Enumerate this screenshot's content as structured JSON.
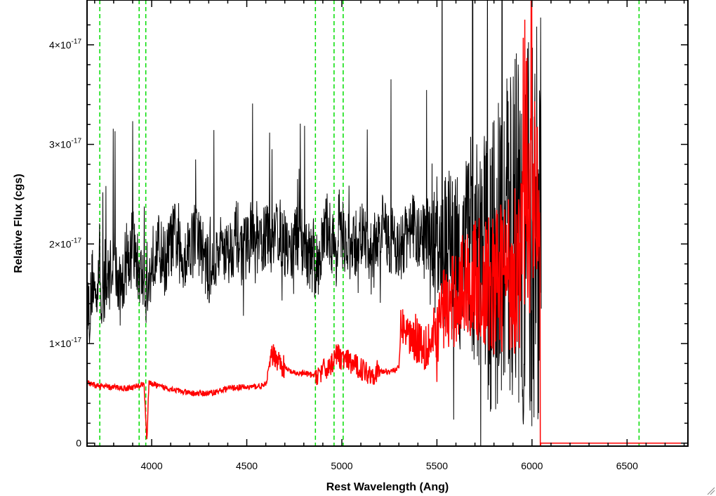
{
  "chart_data": {
    "type": "line",
    "xlabel": "Rest Wavelength (Ang)",
    "ylabel": "Relative Flux (cgs)",
    "xlim": [
      3660,
      6820
    ],
    "ylim": [
      -0.03,
      4.45
    ],
    "y_exponent": "-17",
    "x_ticks": [
      4000,
      4500,
      5000,
      5500,
      6000,
      6500
    ],
    "y_ticks": [
      {
        "value": 0,
        "label": "0"
      },
      {
        "value": 1,
        "label": "1×10",
        "exp": "-17"
      },
      {
        "value": 2,
        "label": "2×10",
        "exp": "-17"
      },
      {
        "value": 3,
        "label": "3×10",
        "exp": "-17"
      },
      {
        "value": 4,
        "label": "4×10",
        "exp": "-17"
      }
    ],
    "reference_lines": [
      3727,
      3934,
      3969,
      4861,
      4959,
      5007,
      6563
    ],
    "grid": false,
    "legend": "none",
    "colors": {
      "observed": "#000000",
      "model": "#ff0000",
      "reference": "#00dd00"
    },
    "series": [
      {
        "color": "#000000",
        "x": [
          3660,
          3675,
          3690,
          3705,
          3720,
          3728,
          3735,
          3750,
          3765,
          3780,
          3800,
          3820,
          3840,
          3860,
          3880,
          3900,
          3920,
          3940,
          3960,
          3980,
          4000,
          4025,
          4050,
          4075,
          4100,
          4125,
          4150,
          4175,
          4200,
          4225,
          4250,
          4275,
          4300,
          4325,
          4350,
          4375,
          4400,
          4425,
          4450,
          4475,
          4500,
          4525,
          4550,
          4575,
          4600,
          4625,
          4650,
          4675,
          4700,
          4725,
          4750,
          4775,
          4800,
          4825,
          4850,
          4860,
          4870,
          4900,
          4925,
          4950,
          4975,
          5000,
          5025,
          5050,
          5075,
          5100,
          5125,
          5150,
          5175,
          5200,
          5225,
          5250,
          5275,
          5300,
          5325,
          5350,
          5375,
          5400,
          5425,
          5450,
          5475,
          5500,
          5525,
          5550,
          5575,
          5600,
          5625,
          5650,
          5675,
          5700,
          5725,
          5750,
          5775,
          5800,
          5825,
          5850,
          5875,
          5900,
          5925,
          5950,
          5975,
          6000,
          6020,
          6035,
          6045,
          6050
        ],
        "y": [
          1.5,
          1.3,
          1.7,
          1.4,
          1.8,
          1.9,
          1.2,
          1.5,
          1.6,
          1.7,
          1.9,
          1.6,
          1.5,
          1.8,
          1.9,
          2.0,
          1.8,
          1.7,
          1.6,
          1.5,
          1.8,
          2.0,
          1.9,
          1.8,
          2.0,
          2.1,
          1.8,
          1.9,
          2.0,
          2.1,
          2.0,
          1.9,
          1.7,
          1.8,
          1.9,
          2.0,
          1.9,
          2.0,
          2.1,
          1.9,
          2.0,
          2.1,
          1.9,
          2.0,
          2.1,
          2.0,
          2.2,
          2.1,
          2.0,
          1.9,
          2.0,
          2.1,
          2.0,
          1.9,
          1.8,
          1.7,
          1.8,
          2.0,
          2.2,
          2.0,
          1.9,
          2.1,
          2.0,
          1.9,
          2.0,
          2.1,
          2.0,
          1.9,
          2.0,
          2.1,
          2.2,
          2.0,
          2.1,
          1.9,
          2.0,
          2.1,
          2.2,
          2.0,
          2.1,
          2.0,
          1.9,
          2.0,
          1.8,
          1.9,
          2.0,
          1.7,
          1.9,
          2.0,
          2.1,
          1.8,
          1.9,
          2.0,
          1.7,
          1.8,
          1.9,
          2.0,
          2.1,
          2.2,
          2.3,
          2.0,
          2.1,
          2.0,
          2.2,
          2.3,
          2.5,
          2.6
        ]
      },
      {
        "color": "#ff0000",
        "x": [
          3660,
          3700,
          3740,
          3780,
          3820,
          3860,
          3900,
          3940,
          3960,
          3975,
          3985,
          4000,
          4025,
          4050,
          4100,
          4150,
          4200,
          4250,
          4300,
          4350,
          4400,
          4450,
          4500,
          4550,
          4600,
          4620,
          4640,
          4660,
          4700,
          4750,
          4800,
          4850,
          4870,
          4900,
          4950,
          4960,
          5000,
          5050,
          5100,
          5150,
          5200,
          5250,
          5300,
          5310,
          5350,
          5400,
          5450,
          5500,
          5520,
          5540,
          5560,
          5600,
          5650,
          5700,
          5750,
          5800,
          5850,
          5900,
          5950,
          5970,
          6000,
          6020,
          6040,
          6045,
          6050,
          6060,
          6100,
          6200,
          6300,
          6400,
          6500,
          6600,
          6700,
          6820
        ],
        "y": [
          0.6,
          0.58,
          0.57,
          0.56,
          0.56,
          0.55,
          0.56,
          0.58,
          0.6,
          0.0,
          0.6,
          0.6,
          0.58,
          0.56,
          0.55,
          0.52,
          0.5,
          0.5,
          0.5,
          0.52,
          0.55,
          0.56,
          0.56,
          0.57,
          0.58,
          0.8,
          0.9,
          0.85,
          0.75,
          0.7,
          0.7,
          0.68,
          0.7,
          0.72,
          0.8,
          0.9,
          0.85,
          0.8,
          0.75,
          0.7,
          0.72,
          0.72,
          0.75,
          1.2,
          1.1,
          1.05,
          1.0,
          1.0,
          1.3,
          1.4,
          1.3,
          1.5,
          1.6,
          1.65,
          1.55,
          1.6,
          1.7,
          1.75,
          1.9,
          2.1,
          2.4,
          2.6,
          2.5,
          0.0,
          0.0,
          0.0,
          0.0,
          0.0,
          0.0,
          0.0,
          0.0,
          0.0,
          0.0,
          0.0
        ]
      }
    ]
  }
}
